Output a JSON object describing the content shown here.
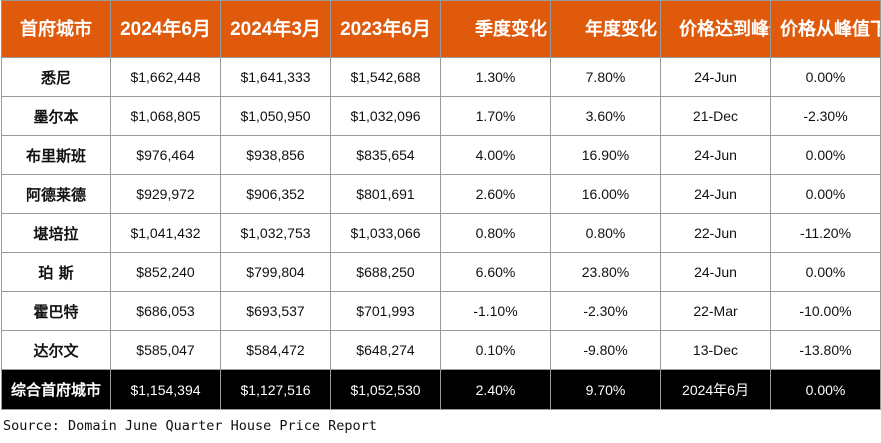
{
  "table": {
    "headers": [
      "首府城市",
      "2024年6月",
      "2024年3月",
      "2023年6月",
      "季度变化",
      "年度变化",
      "价格达到峰值",
      "价格从峰值下降"
    ],
    "rows": [
      {
        "city": "悉尼",
        "jun2024": "$1,662,448",
        "mar2024": "$1,641,333",
        "jun2023": "$1,542,688",
        "quarterly": "1.30%",
        "annual": "7.80%",
        "peak_date": "24-Jun",
        "from_peak": "0.00%"
      },
      {
        "city": "墨尔本",
        "jun2024": "$1,068,805",
        "mar2024": "$1,050,950",
        "jun2023": "$1,032,096",
        "quarterly": "1.70%",
        "annual": "3.60%",
        "peak_date": "21-Dec",
        "from_peak": "-2.30%"
      },
      {
        "city": "布里斯班",
        "jun2024": "$976,464",
        "mar2024": "$938,856",
        "jun2023": "$835,654",
        "quarterly": "4.00%",
        "annual": "16.90%",
        "peak_date": "24-Jun",
        "from_peak": "0.00%"
      },
      {
        "city": "阿德莱德",
        "jun2024": "$929,972",
        "mar2024": "$906,352",
        "jun2023": "$801,691",
        "quarterly": "2.60%",
        "annual": "16.00%",
        "peak_date": "24-Jun",
        "from_peak": "0.00%"
      },
      {
        "city": "堪培拉",
        "jun2024": "$1,041,432",
        "mar2024": "$1,032,753",
        "jun2023": "$1,033,066",
        "quarterly": "0.80%",
        "annual": "0.80%",
        "peak_date": "22-Jun",
        "from_peak": "-11.20%"
      },
      {
        "city": "珀 斯",
        "jun2024": "$852,240",
        "mar2024": "$799,804",
        "jun2023": "$688,250",
        "quarterly": "6.60%",
        "annual": "23.80%",
        "peak_date": "24-Jun",
        "from_peak": "0.00%"
      },
      {
        "city": "霍巴特",
        "jun2024": "$686,053",
        "mar2024": "$693,537",
        "jun2023": "$701,993",
        "quarterly": "-1.10%",
        "annual": "-2.30%",
        "peak_date": "22-Mar",
        "from_peak": "-10.00%"
      },
      {
        "city": "达尔文",
        "jun2024": "$585,047",
        "mar2024": "$584,472",
        "jun2023": "$648,274",
        "quarterly": "0.10%",
        "annual": "-9.80%",
        "peak_date": "13-Dec",
        "from_peak": "-13.80%"
      }
    ],
    "total": {
      "city": "综合首府城市",
      "jun2024": "$1,154,394",
      "mar2024": "$1,127,516",
      "jun2023": "$1,052,530",
      "quarterly": "2.40%",
      "annual": "9.70%",
      "peak_date": "2024年6月",
      "from_peak": "0.00%"
    }
  },
  "source": "Source:  Domain June Quarter House Price Report",
  "colors": {
    "header_bg": "#e05a0c",
    "header_text": "#ffffff",
    "total_bg": "#000000",
    "border": "#9a9a9a"
  }
}
